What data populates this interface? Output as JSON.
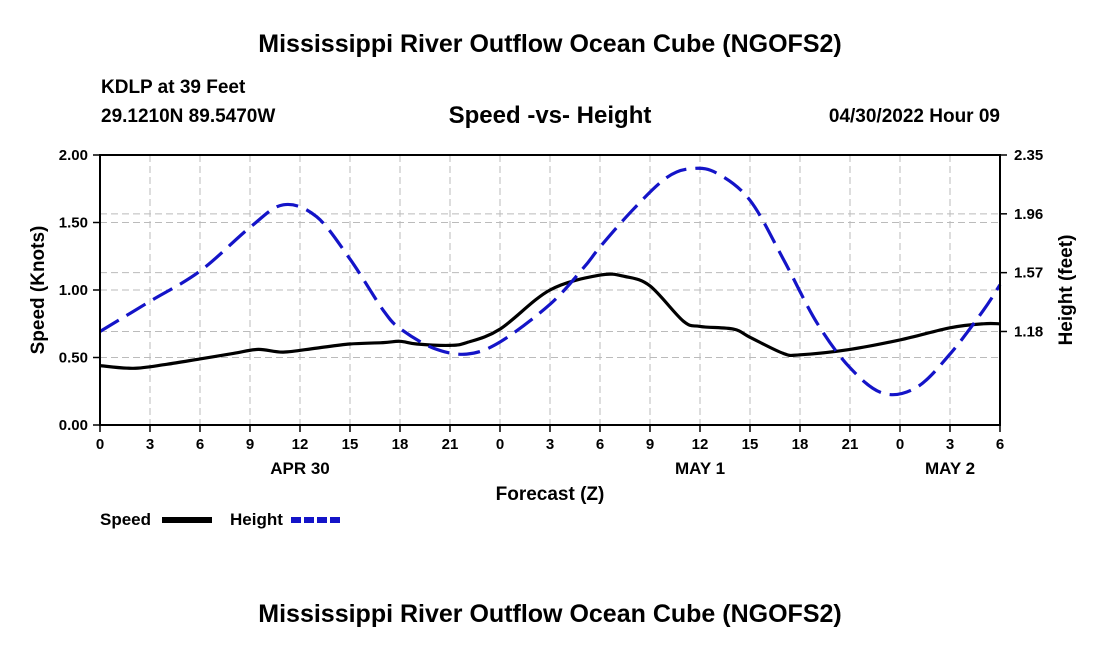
{
  "page": {
    "title_top": "Mississippi River Outflow Ocean Cube (NGOFS2)",
    "title_bottom": "Mississippi River Outflow Ocean Cube (NGOFS2)",
    "station": "KDLP at 39 Feet",
    "coords": "29.1210N  89.5470W",
    "subtitle": "Speed -vs- Height",
    "run_time": "04/30/2022 Hour 09"
  },
  "chart_data": {
    "type": "line",
    "title": "Speed -vs- Height",
    "xlabel": "Forecast (Z)",
    "ylabel": "Speed (Knots)",
    "y2label": "Height (feet)",
    "xlim": [
      0,
      54
    ],
    "ylim": [
      0,
      2.0
    ],
    "y2lim": [
      0.56,
      2.35
    ],
    "x_ticks": [
      0,
      3,
      6,
      9,
      12,
      15,
      18,
      21,
      24,
      27,
      30,
      33,
      36,
      39,
      42,
      45,
      48,
      51,
      54
    ],
    "x_tick_labels": [
      "0",
      "3",
      "6",
      "9",
      "12",
      "15",
      "18",
      "21",
      "0",
      "3",
      "6",
      "9",
      "12",
      "15",
      "18",
      "21",
      "0",
      "3",
      "6"
    ],
    "date_labels": [
      {
        "x": 12,
        "label": "APR 30"
      },
      {
        "x": 36,
        "label": "MAY 1"
      },
      {
        "x": 51,
        "label": "MAY 2"
      }
    ],
    "y_ticks": [
      "0.00",
      "0.50",
      "1.00",
      "1.50",
      "2.00"
    ],
    "y_tick_values": [
      0,
      0.5,
      1.0,
      1.5,
      2.0
    ],
    "y2_ticks": [
      "1.18",
      "1.57",
      "1.96",
      "2.35"
    ],
    "y2_tick_values": [
      1.18,
      1.57,
      1.96,
      2.35
    ],
    "grid": true,
    "legend": [
      {
        "label": "Speed",
        "color": "#000000",
        "style": "solid"
      },
      {
        "label": "Height",
        "color": "#1414c8",
        "style": "dashed"
      }
    ],
    "series": [
      {
        "name": "Speed",
        "axis": "left",
        "color": "#000000",
        "x": [
          0,
          2,
          4,
          6,
          8,
          9.5,
          11,
          13,
          15,
          17,
          18,
          19,
          21,
          22,
          24,
          27,
          30,
          31.5,
          33,
          35,
          36,
          38,
          39,
          41,
          42,
          45,
          48,
          51,
          53,
          54
        ],
        "values": [
          0.44,
          0.42,
          0.45,
          0.49,
          0.53,
          0.56,
          0.54,
          0.57,
          0.6,
          0.61,
          0.62,
          0.6,
          0.59,
          0.61,
          0.71,
          1.0,
          1.11,
          1.1,
          1.03,
          0.77,
          0.73,
          0.71,
          0.65,
          0.53,
          0.52,
          0.56,
          0.63,
          0.72,
          0.75,
          0.75
        ]
      },
      {
        "name": "Height",
        "axis": "right",
        "color": "#1414c8",
        "x": [
          0,
          3,
          6,
          9,
          11,
          13,
          15,
          17,
          18,
          20,
          22,
          24,
          27,
          29,
          30,
          32,
          34,
          35.5,
          37,
          39,
          41,
          43,
          45,
          47,
          49,
          51,
          53,
          54
        ],
        "values": [
          1.18,
          1.38,
          1.58,
          1.87,
          2.02,
          1.94,
          1.66,
          1.32,
          1.2,
          1.07,
          1.03,
          1.11,
          1.36,
          1.6,
          1.74,
          1.99,
          2.2,
          2.26,
          2.23,
          2.05,
          1.66,
          1.24,
          0.94,
          0.77,
          0.81,
          1.03,
          1.32,
          1.49
        ]
      }
    ]
  }
}
